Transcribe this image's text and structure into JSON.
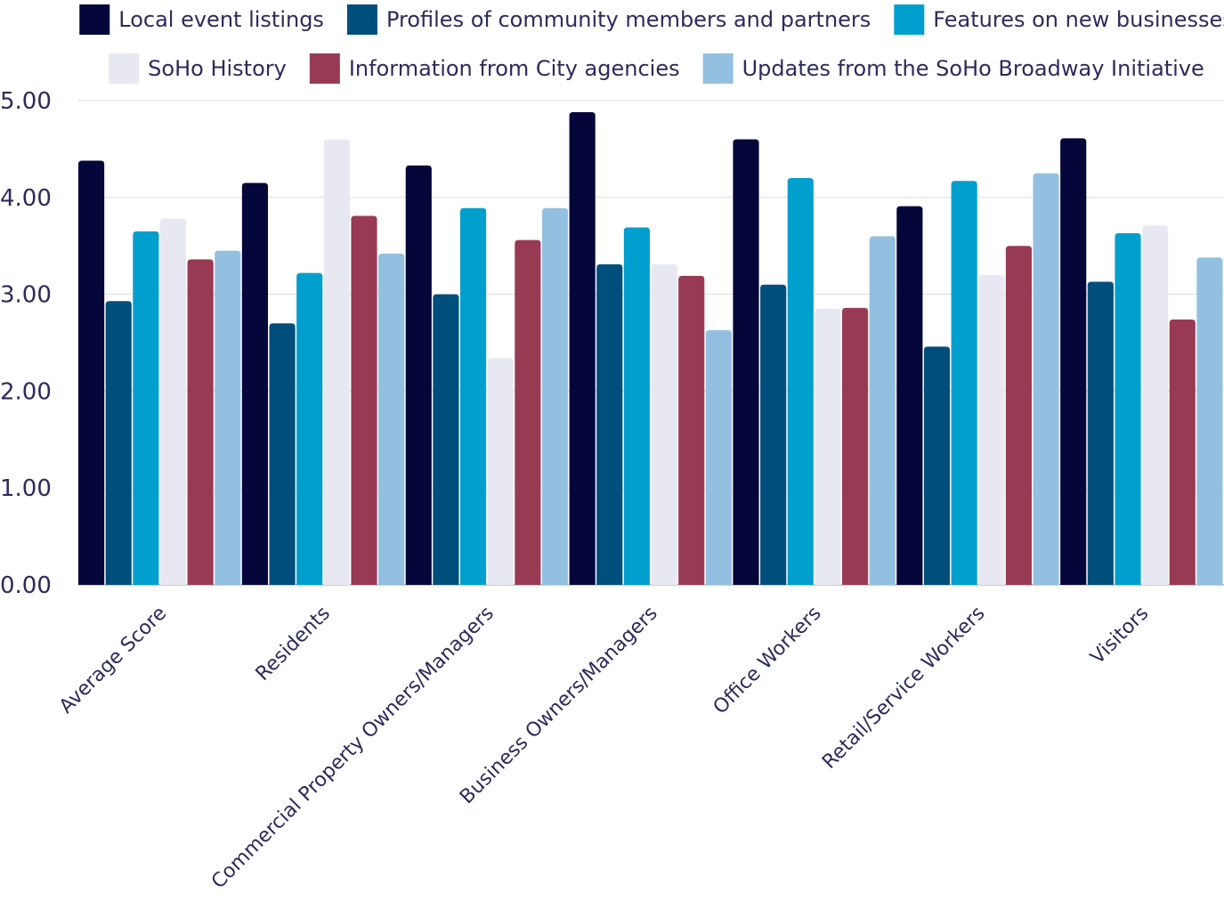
{
  "chart_data": {
    "type": "bar",
    "title": "",
    "xlabel": "",
    "ylabel": "",
    "ylim": [
      0,
      5
    ],
    "yticks": [
      "0.00",
      "1.00",
      "2.00",
      "3.00",
      "4.00",
      "5.00"
    ],
    "grid": true,
    "legend_position": "top",
    "categories": [
      "Average Score",
      "Residents",
      "Commercial Property Owners/Managers",
      "Business Owners/Managers",
      "Office Workers",
      "Retail/Service Workers",
      "Visitors"
    ],
    "series": [
      {
        "name": "Local event listings",
        "color": "#05063a",
        "values": [
          4.38,
          4.15,
          4.33,
          4.88,
          4.6,
          3.91,
          4.61
        ]
      },
      {
        "name": "Profiles of community members and partners",
        "color": "#004e7c",
        "values": [
          2.93,
          2.7,
          3.0,
          3.31,
          3.1,
          2.46,
          3.13
        ]
      },
      {
        "name": "Features on new businesses",
        "color": "#009fce",
        "values": [
          3.65,
          3.22,
          3.89,
          3.69,
          4.2,
          4.17,
          3.63
        ]
      },
      {
        "name": "SoHo History",
        "color": "#e8e8f3",
        "values": [
          3.78,
          4.6,
          2.34,
          3.31,
          2.85,
          3.2,
          3.71
        ]
      },
      {
        "name": "Information from City agencies",
        "color": "#993a55",
        "values": [
          3.36,
          3.81,
          3.56,
          3.19,
          2.86,
          3.5,
          2.74
        ]
      },
      {
        "name": "Updates from the SoHo Broadway Initiative",
        "color": "#93c0e1",
        "values": [
          3.45,
          3.42,
          3.89,
          2.63,
          3.6,
          4.25,
          3.38
        ]
      }
    ]
  }
}
